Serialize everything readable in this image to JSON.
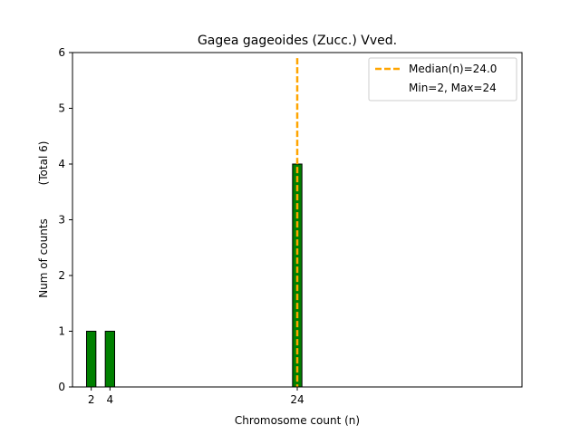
{
  "chart_data": {
    "type": "bar",
    "title": "Gagea gageoides (Zucc.) Vved.",
    "xlabel": "Chromosome count (n)",
    "ylabel": "Num of counts",
    "ylabel_total": "(Total 6)",
    "x": [
      2,
      4,
      24
    ],
    "values": [
      1,
      1,
      4
    ],
    "x_ticks": [
      2,
      4,
      24
    ],
    "y_ticks": [
      0,
      1,
      2,
      3,
      4,
      5,
      6
    ],
    "xlim": [
      0,
      48
    ],
    "ylim": [
      0,
      6
    ],
    "bar_width": 1,
    "bar_color": "#008000",
    "median": 24.0,
    "median_color": "#FFA500",
    "legend": {
      "placement": "top-right",
      "entries": [
        "Median(n)=24.0",
        "Min=2, Max=24"
      ]
    },
    "grid": false
  }
}
